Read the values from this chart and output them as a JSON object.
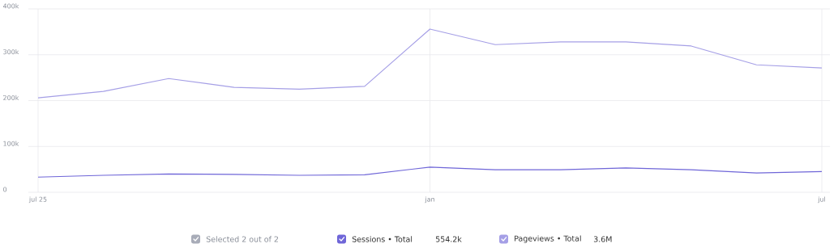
{
  "chart_data": {
    "type": "line",
    "categories": [
      "jul 25",
      null,
      null,
      null,
      null,
      null,
      "jan",
      null,
      null,
      null,
      null,
      null,
      "jul"
    ],
    "series": [
      {
        "name": "Sessions • Total",
        "color": "#6f66d8",
        "values": [
          33000,
          37000,
          40000,
          39000,
          37000,
          38000,
          55000,
          49000,
          49000,
          53000,
          49000,
          42000,
          45000
        ]
      },
      {
        "name": "Pageviews • Total",
        "color": "#a59fe6",
        "values": [
          206000,
          220000,
          248000,
          229000,
          225000,
          231000,
          356000,
          322000,
          328000,
          328000,
          319000,
          278000,
          271000
        ]
      }
    ],
    "ylim": [
      0,
      400000
    ],
    "yticks": [
      0,
      {
        "value": 100000,
        "label": "100k"
      },
      {
        "value": 200000,
        "label": "200k"
      },
      {
        "value": 300000,
        "label": "300k"
      },
      {
        "value": 400000,
        "label": "400k"
      }
    ],
    "grid": true,
    "legend": "bottom",
    "marker": "none",
    "line_style": "solid",
    "annotations": [
      "Selected 2 out of 2",
      "554.2k",
      "3.6M"
    ]
  }
}
